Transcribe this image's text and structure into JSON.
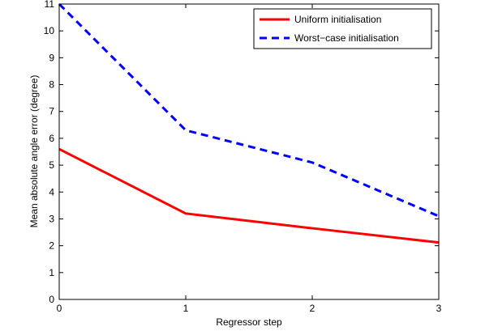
{
  "chart_data": {
    "type": "line",
    "xlabel": "Regressor step",
    "ylabel": "Mean absolute angle error (degree)",
    "xlim": [
      0,
      3
    ],
    "ylim": [
      0,
      11
    ],
    "x_ticks": [
      "0",
      "1",
      "2",
      "3"
    ],
    "y_ticks": [
      "0",
      "1",
      "2",
      "3",
      "4",
      "5",
      "6",
      "7",
      "8",
      "9",
      "10",
      "11"
    ],
    "grid": false,
    "legend_position": "top-right",
    "x": [
      0,
      1,
      2,
      3
    ],
    "series": [
      {
        "name": "Uniform initialisation",
        "values": [
          5.6,
          3.2,
          2.65,
          2.12
        ],
        "color": "#ff0000",
        "style": "solid"
      },
      {
        "name": "Worst−case initialisation",
        "values": [
          11.0,
          6.3,
          5.1,
          3.1
        ],
        "color": "#0000ff",
        "style": "dashed"
      }
    ]
  }
}
